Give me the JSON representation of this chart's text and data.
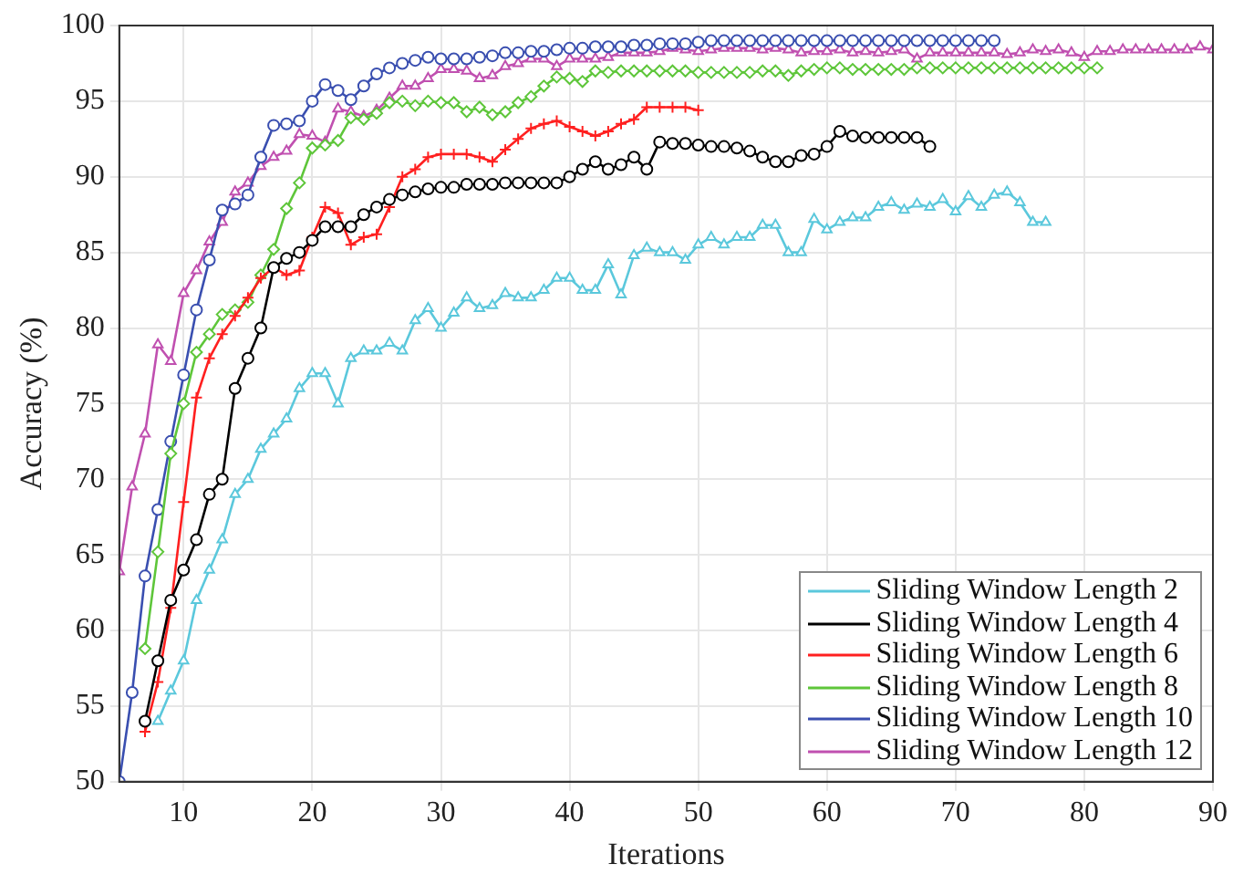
{
  "chart_data": {
    "type": "line",
    "xlabel": "Iterations",
    "ylabel": "Accuracy (%)",
    "x": [
      5,
      6,
      7,
      8,
      9,
      10,
      11,
      12,
      13,
      14,
      15,
      16,
      17,
      18,
      19,
      20,
      21,
      22,
      23,
      24,
      25,
      26,
      27,
      28,
      29,
      30,
      31,
      32,
      33,
      34,
      35,
      36,
      37,
      38,
      39,
      40,
      41,
      42,
      43,
      44,
      45,
      46,
      47,
      48,
      49,
      50,
      51,
      52,
      53,
      54,
      55,
      56,
      57,
      58,
      59,
      60,
      61,
      62,
      63,
      64,
      65,
      66,
      67,
      68,
      69,
      70,
      71,
      72,
      73,
      74,
      75,
      76,
      77,
      78,
      79,
      80,
      81,
      82,
      83,
      84,
      85,
      86,
      87,
      88,
      89,
      90
    ],
    "xlim": [
      5,
      90
    ],
    "xticks": [
      10,
      20,
      30,
      40,
      50,
      60,
      70,
      80,
      90
    ],
    "ylim": [
      50,
      100
    ],
    "yticks": [
      50,
      55,
      60,
      65,
      70,
      75,
      80,
      85,
      90,
      95,
      100
    ],
    "grid": true,
    "legend": "bottom right",
    "line_style": "solid",
    "series": [
      {
        "name": "Sliding Window Length 2",
        "color": "#5bc8dc",
        "marker": "triangle",
        "values": [
          null,
          null,
          null,
          54,
          56,
          58,
          62,
          64,
          66,
          69,
          70,
          72,
          73,
          74,
          76,
          77,
          77,
          75,
          78,
          78.5,
          78.5,
          79,
          78.5,
          80.5,
          81.3,
          80,
          81,
          82,
          81.3,
          81.5,
          82.3,
          82,
          82,
          82.5,
          83.3,
          83.3,
          82.5,
          82.5,
          84.2,
          82.2,
          84.8,
          85.3,
          85,
          85,
          84.5,
          85.5,
          86,
          85.5,
          86,
          86,
          86.8,
          86.8,
          85,
          85,
          87.2,
          86.5,
          87,
          87.3,
          87.3,
          88,
          88.3,
          87.8,
          88.2,
          88,
          88.5,
          87.7,
          88.7,
          88,
          88.8,
          89,
          88.3,
          87,
          87,
          null,
          null,
          null,
          null,
          null,
          null,
          null,
          null,
          null,
          null,
          null,
          null,
          null
        ]
      },
      {
        "name": "Sliding Window Length 4",
        "color": "#000000",
        "marker": "circle",
        "values": [
          null,
          null,
          54,
          58,
          62,
          64,
          66,
          69,
          70,
          76,
          78,
          80,
          84,
          84.6,
          85,
          85.8,
          86.7,
          86.7,
          86.7,
          87.5,
          88,
          88.5,
          88.8,
          89,
          89.2,
          89.3,
          89.3,
          89.5,
          89.5,
          89.5,
          89.6,
          89.6,
          89.6,
          89.6,
          89.6,
          90,
          90.5,
          91,
          90.5,
          90.8,
          91.3,
          90.5,
          92.3,
          92.2,
          92.2,
          92.1,
          92,
          92,
          91.9,
          91.7,
          91.3,
          91,
          91,
          91.4,
          91.5,
          92,
          93,
          92.7,
          92.6,
          92.6,
          92.6,
          92.6,
          92.6,
          92,
          null,
          null,
          null,
          null,
          null,
          null,
          null,
          null,
          null,
          null,
          null,
          null,
          null,
          null,
          null,
          null,
          null,
          null,
          null,
          null,
          null,
          null
        ]
      },
      {
        "name": "Sliding Window Length 6",
        "color": "#ff2020",
        "marker": "cross",
        "values": [
          null,
          null,
          53.3,
          56.6,
          61.5,
          68.5,
          75.4,
          78,
          79.6,
          80.8,
          82,
          83.3,
          84,
          83.5,
          83.8,
          86,
          88,
          87.6,
          85.5,
          86,
          86.2,
          88,
          90,
          90.5,
          91.3,
          91.5,
          91.5,
          91.5,
          91.3,
          91,
          91.8,
          92.5,
          93.2,
          93.5,
          93.7,
          93.3,
          93,
          92.7,
          93,
          93.5,
          93.8,
          94.6,
          94.6,
          94.6,
          94.6,
          94.4,
          null,
          null,
          null,
          null,
          null,
          null,
          null,
          null,
          null,
          null,
          null,
          null,
          null,
          null,
          null,
          null,
          null,
          null,
          null,
          null,
          null,
          null,
          null,
          null,
          null,
          null,
          null,
          null,
          null,
          null,
          null,
          null,
          null,
          null,
          null,
          null,
          null,
          null,
          null,
          null
        ]
      },
      {
        "name": "Sliding Window Length 8",
        "color": "#5ec63a",
        "marker": "diamond",
        "values": [
          null,
          null,
          58.8,
          65.2,
          71.7,
          75,
          78.4,
          79.6,
          80.9,
          81.2,
          81.7,
          83.5,
          85.2,
          87.9,
          89.6,
          91.9,
          92.1,
          92.4,
          93.9,
          93.8,
          94.2,
          94.9,
          95,
          94.7,
          95,
          94.9,
          94.9,
          94.3,
          94.6,
          94.1,
          94.3,
          94.9,
          95.3,
          96,
          96.6,
          96.5,
          96.3,
          97,
          96.9,
          97,
          97,
          97,
          97,
          97,
          97,
          96.9,
          96.9,
          96.9,
          96.9,
          96.9,
          97,
          97,
          96.7,
          97,
          97.1,
          97.2,
          97.2,
          97.1,
          97.1,
          97.1,
          97.1,
          97.1,
          97.2,
          97.2,
          97.2,
          97.2,
          97.2,
          97.2,
          97.2,
          97.2,
          97.2,
          97.2,
          97.2,
          97.2,
          97.2,
          97.2,
          97.2,
          null,
          null,
          null,
          null,
          null,
          null,
          null,
          null,
          null
        ]
      },
      {
        "name": "Sliding Window Length 10",
        "color": "#3a4fb0",
        "marker": "circle",
        "values": [
          50,
          55.9,
          63.6,
          68,
          72.5,
          76.9,
          81.2,
          84.5,
          87.8,
          88.2,
          88.8,
          91.3,
          93.4,
          93.5,
          93.7,
          95,
          96.1,
          95.7,
          95.1,
          96,
          96.8,
          97.2,
          97.5,
          97.7,
          97.9,
          97.8,
          97.8,
          97.8,
          97.9,
          98,
          98.2,
          98.2,
          98.3,
          98.3,
          98.4,
          98.5,
          98.5,
          98.6,
          98.6,
          98.6,
          98.7,
          98.7,
          98.8,
          98.8,
          98.8,
          98.9,
          99,
          99,
          99,
          99,
          99,
          99,
          99,
          99,
          99,
          99,
          99,
          99,
          99,
          99,
          99,
          99,
          99,
          99,
          99,
          99,
          99,
          99,
          99,
          null,
          null,
          null,
          null,
          null,
          null,
          null,
          null,
          null,
          null,
          null,
          null,
          null,
          null,
          null,
          null,
          null
        ]
      },
      {
        "name": "Sliding Window Length 12",
        "color": "#c050b0",
        "marker": "triangle",
        "values": [
          63.9,
          69.5,
          73,
          78.9,
          77.8,
          82.3,
          83.8,
          85.7,
          87,
          89,
          89.6,
          90.7,
          91.3,
          91.7,
          92.8,
          92.7,
          92.3,
          94.5,
          94.3,
          94,
          94.4,
          95.2,
          96,
          96,
          96.5,
          97.1,
          97.1,
          97,
          96.5,
          96.7,
          97.3,
          97.5,
          97.8,
          97.8,
          97.3,
          97.8,
          97.8,
          97.8,
          97.9,
          98.2,
          98.2,
          98.2,
          98.3,
          98.5,
          98.4,
          98.3,
          98.4,
          98.5,
          98.5,
          98.5,
          98.4,
          98.5,
          98.4,
          98.2,
          98.3,
          98.3,
          98.4,
          98.2,
          98.3,
          98.2,
          98.3,
          98.4,
          97.8,
          98.2,
          98.2,
          98.2,
          98.2,
          98.2,
          98.2,
          98.1,
          98.2,
          98.4,
          98.3,
          98.4,
          98.2,
          97.9,
          98.3,
          98.3,
          98.4,
          98.4,
          98.4,
          98.4,
          98.4,
          98.4,
          98.6,
          98.4
        ]
      }
    ]
  }
}
